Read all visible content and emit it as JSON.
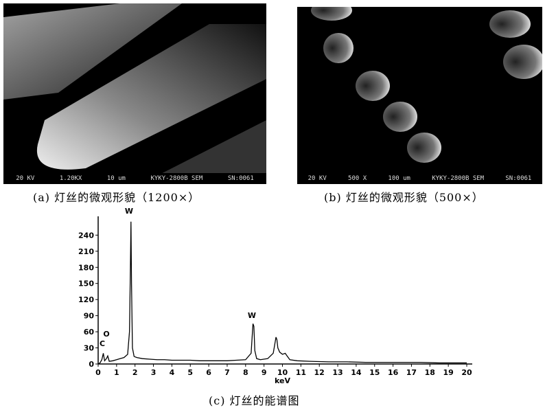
{
  "panels": [
    {
      "caption": "(a) 灯丝的微观形貌（1200×）",
      "info": [
        "20 KV",
        "1.20KX",
        "10 um",
        "KYKY-2800B SEM",
        "SN:0061"
      ]
    },
    {
      "caption": "(b) 灯丝的微观形貌（500×）",
      "info": [
        "20 KV",
        "500 X",
        "100 um",
        "KYKY-2800B SEM",
        "SN:0061"
      ]
    }
  ],
  "chart_data": {
    "type": "line",
    "caption": "(c) 灯丝的能谱图",
    "xlabel": "keV",
    "color": "#000000",
    "x": [
      0,
      0.1,
      0.2,
      0.28,
      0.35,
      0.45,
      0.52,
      0.6,
      0.8,
      1.0,
      1.2,
      1.4,
      1.6,
      1.7,
      1.75,
      1.78,
      1.81,
      1.86,
      1.95,
      2.1,
      2.4,
      2.8,
      3.2,
      3.6,
      4.0,
      4.5,
      5.0,
      5.5,
      6.0,
      6.5,
      7.0,
      7.5,
      8.0,
      8.3,
      8.4,
      8.45,
      8.5,
      8.6,
      8.8,
      9.2,
      9.5,
      9.65,
      9.7,
      9.75,
      9.85,
      10.0,
      10.15,
      10.25,
      10.4,
      10.8,
      11.5,
      12.5,
      13.5,
      14.5,
      15.5,
      16.5,
      17.5,
      18.5,
      19.5,
      20
    ],
    "values": [
      0,
      2,
      8,
      20,
      6,
      10,
      15,
      5,
      6,
      8,
      10,
      12,
      18,
      60,
      180,
      265,
      150,
      30,
      14,
      12,
      10,
      9,
      8,
      8,
      7,
      7,
      7,
      6,
      6,
      6,
      6,
      7,
      8,
      20,
      75,
      70,
      25,
      10,
      8,
      10,
      20,
      50,
      45,
      30,
      22,
      18,
      20,
      15,
      8,
      6,
      5,
      4,
      4,
      3,
      3,
      3,
      3,
      2,
      2,
      2
    ],
    "annotations": [
      "W",
      "W",
      "O",
      "C"
    ],
    "xlim": [
      0,
      20
    ],
    "xticks": [
      0,
      1,
      2,
      3,
      4,
      5,
      6,
      7,
      8,
      9,
      10,
      11,
      12,
      13,
      14,
      15,
      16,
      17,
      18,
      19,
      20
    ],
    "ylim": [
      0,
      275
    ],
    "yticks": [
      0,
      30,
      60,
      90,
      120,
      150,
      180,
      210,
      240
    ]
  }
}
